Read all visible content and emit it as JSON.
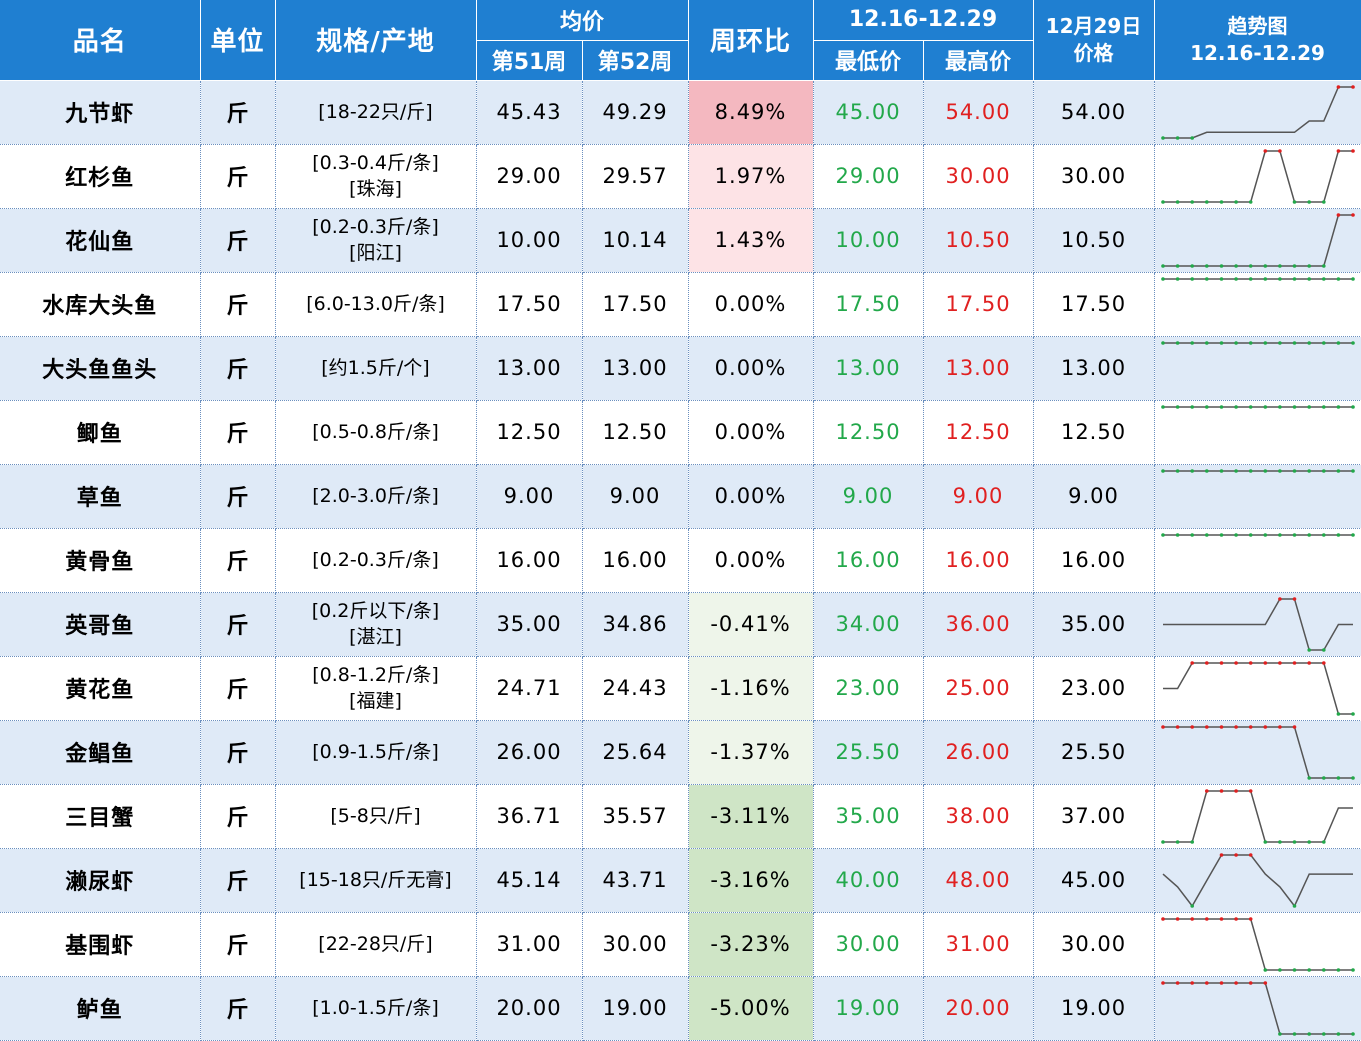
{
  "header": {
    "col_name": "品名",
    "col_unit": "单位",
    "col_spec": "规格/产地",
    "col_avg": "均价",
    "col_week51": "第51周",
    "col_week52": "第52周",
    "col_wow": "周环比",
    "col_range_title": "12.16-12.29",
    "col_min": "最低价",
    "col_max": "最高价",
    "col_dec29_line1": "12月29日",
    "col_dec29_line2": "价格",
    "col_trend_line1": "趋势图",
    "col_trend_line2": "12.16-12.29"
  },
  "colors": {
    "header_bg": "#1f7fd1",
    "row_alt_bg": "#dfeaf7",
    "min_text": "#22a84a",
    "max_text": "#e02020",
    "wow_positive_strong": "#f4b8c0",
    "wow_positive_light": "#fde3e6",
    "wow_negative_strong": "#cfe5c6",
    "wow_negative_light": "#eef5ea",
    "spark_line": "#555555",
    "spark_marker_low": "#22a84a",
    "spark_marker_high": "#e02020"
  },
  "rows": [
    {
      "name": "九节虾",
      "unit": "斤",
      "spec1": "[18-22只/斤]",
      "spec2": "",
      "w51": "45.43",
      "w52": "49.29",
      "wow": "8.49%",
      "wow_value": 8.49,
      "min": "45.00",
      "max": "54.00",
      "dec29": "54.00",
      "trend": [
        45,
        45,
        45,
        46,
        46,
        46,
        46,
        46,
        46,
        46,
        48,
        48,
        54,
        54
      ]
    },
    {
      "name": "红杉鱼",
      "unit": "斤",
      "spec1": "[0.3-0.4斤/条]",
      "spec2": "[珠海]",
      "w51": "29.00",
      "w52": "29.57",
      "wow": "1.97%",
      "wow_value": 1.97,
      "min": "29.00",
      "max": "30.00",
      "dec29": "30.00",
      "trend": [
        29,
        29,
        29,
        29,
        29,
        29,
        29,
        30,
        30,
        29,
        29,
        29,
        30,
        30
      ]
    },
    {
      "name": "花仙鱼",
      "unit": "斤",
      "spec1": "[0.2-0.3斤/条]",
      "spec2": "[阳江]",
      "w51": "10.00",
      "w52": "10.14",
      "wow": "1.43%",
      "wow_value": 1.43,
      "min": "10.00",
      "max": "10.50",
      "dec29": "10.50",
      "trend": [
        10,
        10,
        10,
        10,
        10,
        10,
        10,
        10,
        10,
        10,
        10,
        10,
        10.5,
        10.5
      ]
    },
    {
      "name": "水库大头鱼",
      "unit": "斤",
      "spec1": "[6.0-13.0斤/条]",
      "spec2": "",
      "w51": "17.50",
      "w52": "17.50",
      "wow": "0.00%",
      "wow_value": 0,
      "min": "17.50",
      "max": "17.50",
      "dec29": "17.50",
      "trend": [
        17.5,
        17.5,
        17.5,
        17.5,
        17.5,
        17.5,
        17.5,
        17.5,
        17.5,
        17.5,
        17.5,
        17.5,
        17.5,
        17.5
      ]
    },
    {
      "name": "大头鱼鱼头",
      "unit": "斤",
      "spec1": "[约1.5斤/个]",
      "spec2": "",
      "w51": "13.00",
      "w52": "13.00",
      "wow": "0.00%",
      "wow_value": 0,
      "min": "13.00",
      "max": "13.00",
      "dec29": "13.00",
      "trend": [
        13,
        13,
        13,
        13,
        13,
        13,
        13,
        13,
        13,
        13,
        13,
        13,
        13,
        13
      ]
    },
    {
      "name": "鲫鱼",
      "unit": "斤",
      "spec1": "[0.5-0.8斤/条]",
      "spec2": "",
      "w51": "12.50",
      "w52": "12.50",
      "wow": "0.00%",
      "wow_value": 0,
      "min": "12.50",
      "max": "12.50",
      "dec29": "12.50",
      "trend": [
        12.5,
        12.5,
        12.5,
        12.5,
        12.5,
        12.5,
        12.5,
        12.5,
        12.5,
        12.5,
        12.5,
        12.5,
        12.5,
        12.5
      ]
    },
    {
      "name": "草鱼",
      "unit": "斤",
      "spec1": "[2.0-3.0斤/条]",
      "spec2": "",
      "w51": "9.00",
      "w52": "9.00",
      "wow": "0.00%",
      "wow_value": 0,
      "min": "9.00",
      "max": "9.00",
      "dec29": "9.00",
      "trend": [
        9,
        9,
        9,
        9,
        9,
        9,
        9,
        9,
        9,
        9,
        9,
        9,
        9,
        9
      ]
    },
    {
      "name": "黄骨鱼",
      "unit": "斤",
      "spec1": "[0.2-0.3斤/条]",
      "spec2": "",
      "w51": "16.00",
      "w52": "16.00",
      "wow": "0.00%",
      "wow_value": 0,
      "min": "16.00",
      "max": "16.00",
      "dec29": "16.00",
      "trend": [
        16,
        16,
        16,
        16,
        16,
        16,
        16,
        16,
        16,
        16,
        16,
        16,
        16,
        16
      ]
    },
    {
      "name": "英哥鱼",
      "unit": "斤",
      "spec1": "[0.2斤以下/条]",
      "spec2": "[湛江]",
      "w51": "35.00",
      "w52": "34.86",
      "wow": "-0.41%",
      "wow_value": -0.41,
      "min": "34.00",
      "max": "36.00",
      "dec29": "35.00",
      "trend": [
        35,
        35,
        35,
        35,
        35,
        35,
        35,
        35,
        36,
        36,
        34,
        34,
        35,
        35
      ]
    },
    {
      "name": "黄花鱼",
      "unit": "斤",
      "spec1": "[0.8-1.2斤/条]",
      "spec2": "[福建]",
      "w51": "24.71",
      "w52": "24.43",
      "wow": "-1.16%",
      "wow_value": -1.16,
      "min": "23.00",
      "max": "25.00",
      "dec29": "23.00",
      "trend": [
        24,
        24,
        25,
        25,
        25,
        25,
        25,
        25,
        25,
        25,
        25,
        25,
        23,
        23
      ]
    },
    {
      "name": "金鲳鱼",
      "unit": "斤",
      "spec1": "[0.9-1.5斤/条]",
      "spec2": "",
      "w51": "26.00",
      "w52": "25.64",
      "wow": "-1.37%",
      "wow_value": -1.37,
      "min": "25.50",
      "max": "26.00",
      "dec29": "25.50",
      "trend": [
        26,
        26,
        26,
        26,
        26,
        26,
        26,
        26,
        26,
        26,
        25.5,
        25.5,
        25.5,
        25.5
      ]
    },
    {
      "name": "三目蟹",
      "unit": "斤",
      "spec1": "[5-8只/斤]",
      "spec2": "",
      "w51": "36.71",
      "w52": "35.57",
      "wow": "-3.11%",
      "wow_value": -3.11,
      "min": "35.00",
      "max": "38.00",
      "dec29": "37.00",
      "trend": [
        35,
        35,
        35,
        38,
        38,
        38,
        38,
        35,
        35,
        35,
        35,
        35,
        37,
        37
      ]
    },
    {
      "name": "濑尿虾",
      "unit": "斤",
      "spec1": "[15-18只/斤无膏]",
      "spec2": "",
      "w51": "45.14",
      "w52": "43.71",
      "wow": "-3.16%",
      "wow_value": -3.16,
      "min": "40.00",
      "max": "48.00",
      "dec29": "45.00",
      "trend": [
        45,
        43,
        40,
        44,
        48,
        48,
        48,
        45,
        43,
        40,
        45,
        45,
        45,
        45
      ]
    },
    {
      "name": "基围虾",
      "unit": "斤",
      "spec1": "[22-28只/斤]",
      "spec2": "",
      "w51": "31.00",
      "w52": "30.00",
      "wow": "-3.23%",
      "wow_value": -3.23,
      "min": "30.00",
      "max": "31.00",
      "dec29": "30.00",
      "trend": [
        31,
        31,
        31,
        31,
        31,
        31,
        31,
        30,
        30,
        30,
        30,
        30,
        30,
        30
      ]
    },
    {
      "name": "鲈鱼",
      "unit": "斤",
      "spec1": "[1.0-1.5斤/条]",
      "spec2": "",
      "w51": "20.00",
      "w52": "19.00",
      "wow": "-5.00%",
      "wow_value": -5.0,
      "min": "19.00",
      "max": "20.00",
      "dec29": "19.00",
      "trend": [
        20,
        20,
        20,
        20,
        20,
        20,
        20,
        20,
        19,
        19,
        19,
        19,
        19,
        19
      ]
    }
  ]
}
